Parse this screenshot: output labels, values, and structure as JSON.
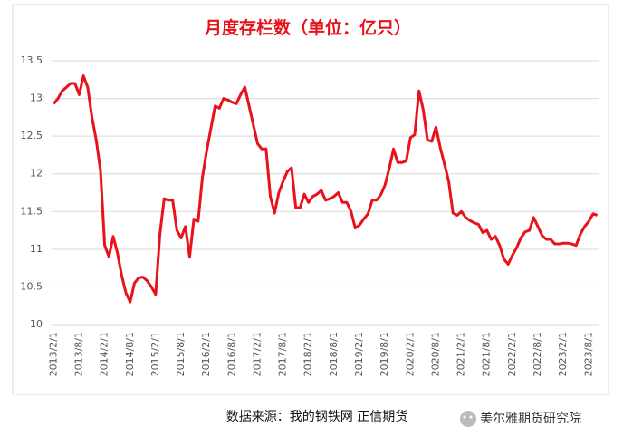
{
  "chart_data": {
    "type": "line",
    "title": "月度存栏数（单位：亿只）",
    "categories": [
      "2013/2/1",
      null,
      null,
      null,
      null,
      null,
      "2013/8/1",
      null,
      null,
      null,
      null,
      null,
      "2014/2/1",
      null,
      null,
      null,
      null,
      null,
      "2014/8/1",
      null,
      null,
      null,
      null,
      null,
      "2015/2/1",
      null,
      null,
      null,
      null,
      null,
      "2015/8/1",
      null,
      null,
      null,
      null,
      null,
      "2016/2/1",
      null,
      null,
      null,
      null,
      null,
      "2016/8/1",
      null,
      null,
      null,
      null,
      null,
      "2017/2/1",
      null,
      null,
      null,
      null,
      null,
      "2017/8/1",
      null,
      null,
      null,
      null,
      null,
      "2018/2/1",
      null,
      null,
      null,
      null,
      null,
      "2018/8/1",
      null,
      null,
      null,
      null,
      null,
      "2019/2/1",
      null,
      null,
      null,
      null,
      null,
      "2019/8/1",
      null,
      null,
      null,
      null,
      null,
      "2020/2/1",
      null,
      null,
      null,
      null,
      null,
      "2020/8/1",
      null,
      null,
      null,
      null,
      null,
      "2021/2/1",
      null,
      null,
      null,
      null,
      null,
      "2021/8/1",
      null,
      null,
      null,
      null,
      null,
      "2022/2/1",
      null,
      null,
      null,
      null,
      null,
      "2022/8/1",
      null,
      null,
      null,
      null,
      null,
      "2023/2/1",
      null,
      null,
      null,
      null,
      null,
      "2023/8/1",
      null,
      null
    ],
    "values": [
      12.93,
      13.0,
      13.1,
      13.15,
      13.2,
      13.2,
      13.05,
      13.3,
      13.15,
      12.75,
      12.45,
      12.05,
      11.05,
      10.9,
      11.17,
      10.95,
      10.65,
      10.42,
      10.3,
      10.55,
      10.62,
      10.63,
      10.58,
      10.5,
      10.4,
      11.2,
      11.67,
      11.65,
      11.65,
      11.25,
      11.15,
      11.3,
      10.9,
      11.4,
      11.37,
      11.95,
      12.3,
      12.6,
      12.9,
      12.87,
      13.0,
      12.98,
      12.95,
      12.93,
      13.05,
      13.15,
      12.9,
      12.65,
      12.4,
      12.33,
      12.33,
      11.7,
      11.48,
      11.75,
      11.9,
      12.03,
      12.08,
      11.55,
      11.55,
      11.73,
      11.62,
      11.7,
      11.73,
      11.78,
      11.65,
      11.67,
      11.7,
      11.75,
      11.62,
      11.62,
      11.5,
      11.28,
      11.32,
      11.4,
      11.47,
      11.65,
      11.65,
      11.72,
      11.85,
      12.07,
      12.33,
      12.15,
      12.15,
      12.17,
      12.48,
      12.52,
      13.1,
      12.85,
      12.45,
      12.43,
      12.62,
      12.35,
      12.13,
      11.9,
      11.48,
      11.45,
      11.5,
      11.42,
      11.38,
      11.35,
      11.33,
      11.22,
      11.25,
      11.13,
      11.17,
      11.05,
      10.87,
      10.8,
      10.92,
      11.02,
      11.15,
      11.23,
      11.25,
      11.42,
      11.3,
      11.18,
      11.13,
      11.13,
      11.07,
      11.07,
      11.08,
      11.08,
      11.07,
      11.05,
      11.2,
      11.3,
      11.37,
      11.47,
      11.45
    ],
    "color": "#e8121b",
    "ylim": [
      10,
      13.5
    ],
    "yticks": [
      10,
      10.5,
      11,
      11.5,
      12,
      12.5,
      13,
      13.5
    ],
    "grid": true
  },
  "footer": {
    "source": "数据来源：我的钢铁网  正信期货",
    "watermark": "美尔雅期货研究院"
  }
}
